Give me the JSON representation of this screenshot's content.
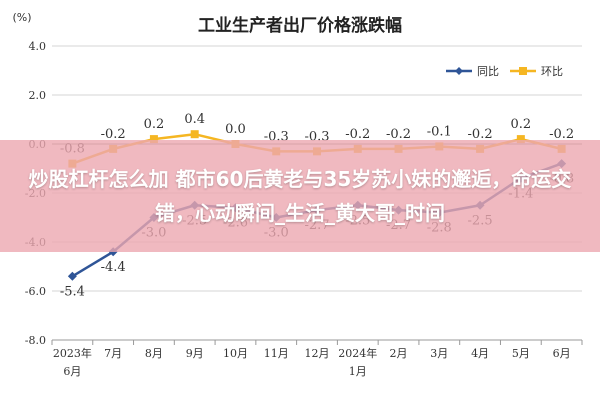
{
  "chart_data": {
    "type": "line",
    "title": "工业生产者出厂价格涨跌幅",
    "ylabel": "(%)",
    "ylim": [
      -8.0,
      4.0
    ],
    "yticks": [
      "4.0",
      "2.0",
      "0.0",
      "-2.0",
      "-4.0",
      "-6.0",
      "-8.0"
    ],
    "ytick_values": [
      4,
      2,
      0,
      -2,
      -4,
      -6,
      -8
    ],
    "categories": [
      "2023年\n6月",
      "7月",
      "8月",
      "9月",
      "10月",
      "11月",
      "12月",
      "2024年\n1月",
      "2月",
      "3月",
      "4月",
      "5月",
      "6月"
    ],
    "grid": true,
    "legend_position": "top-right",
    "series": [
      {
        "name": "同比",
        "color": "#2f5597",
        "values": [
          -5.4,
          -4.4,
          -3.0,
          -2.5,
          -2.6,
          -3.0,
          -2.7,
          -2.5,
          -2.7,
          -2.8,
          -2.5,
          -1.4,
          -0.8
        ],
        "labels": [
          "-5.4",
          "-4.4",
          "-3.0",
          "-2.5",
          "-2.6",
          "-3.0",
          "-2.7",
          "-2.5",
          "-2.7",
          "-2.8",
          "-2.5",
          "-1.4",
          "-0.8"
        ]
      },
      {
        "name": "环比",
        "color": "#f5b622",
        "values": [
          -0.8,
          -0.2,
          0.2,
          0.4,
          0.0,
          -0.3,
          -0.3,
          -0.2,
          -0.2,
          -0.1,
          -0.2,
          0.2,
          -0.2
        ],
        "labels": [
          "-0.8",
          "-0.2",
          "0.2",
          "0.4",
          "0.0",
          "-0.3",
          "-0.3",
          "-0.2",
          "-0.2",
          "-0.1",
          "-0.2",
          "0.2",
          "-0.2"
        ]
      }
    ]
  },
  "overlay": {
    "text": "炒股杠杆怎么加 都市60后黄老与35岁苏小妹的邂逅，命运交错，心动瞬间_生活_黄大哥_时间",
    "background": "#eca8b0"
  }
}
